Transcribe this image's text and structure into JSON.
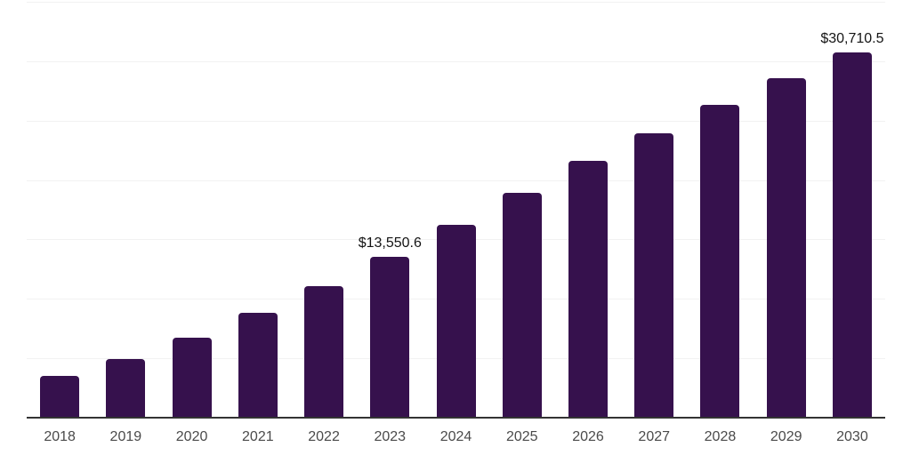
{
  "chart_data": {
    "type": "bar",
    "title": "",
    "xlabel": "",
    "ylabel": "",
    "categories": [
      "2018",
      "2019",
      "2020",
      "2021",
      "2022",
      "2023",
      "2024",
      "2025",
      "2026",
      "2027",
      "2028",
      "2029",
      "2030"
    ],
    "values": [
      3500,
      4900,
      6700,
      8850,
      11100,
      13550.6,
      16200,
      18900,
      21650,
      23950,
      26350,
      28600,
      30710.5
    ],
    "data_labels": [
      {
        "category": "2023",
        "text": "$13,550.6"
      },
      {
        "category": "2030",
        "text": "$30,710.5"
      }
    ],
    "ylim": [
      0,
      35000
    ],
    "gridline_step": 5000,
    "grid": true,
    "legend": false,
    "y_tick_labels_visible": false,
    "colors": {
      "bar": "#36114d",
      "gridline": "#f2f2f2",
      "axis_line": "#333333",
      "tick_label": "#4a4a4a",
      "data_label": "#141414",
      "background": "#ffffff"
    }
  }
}
